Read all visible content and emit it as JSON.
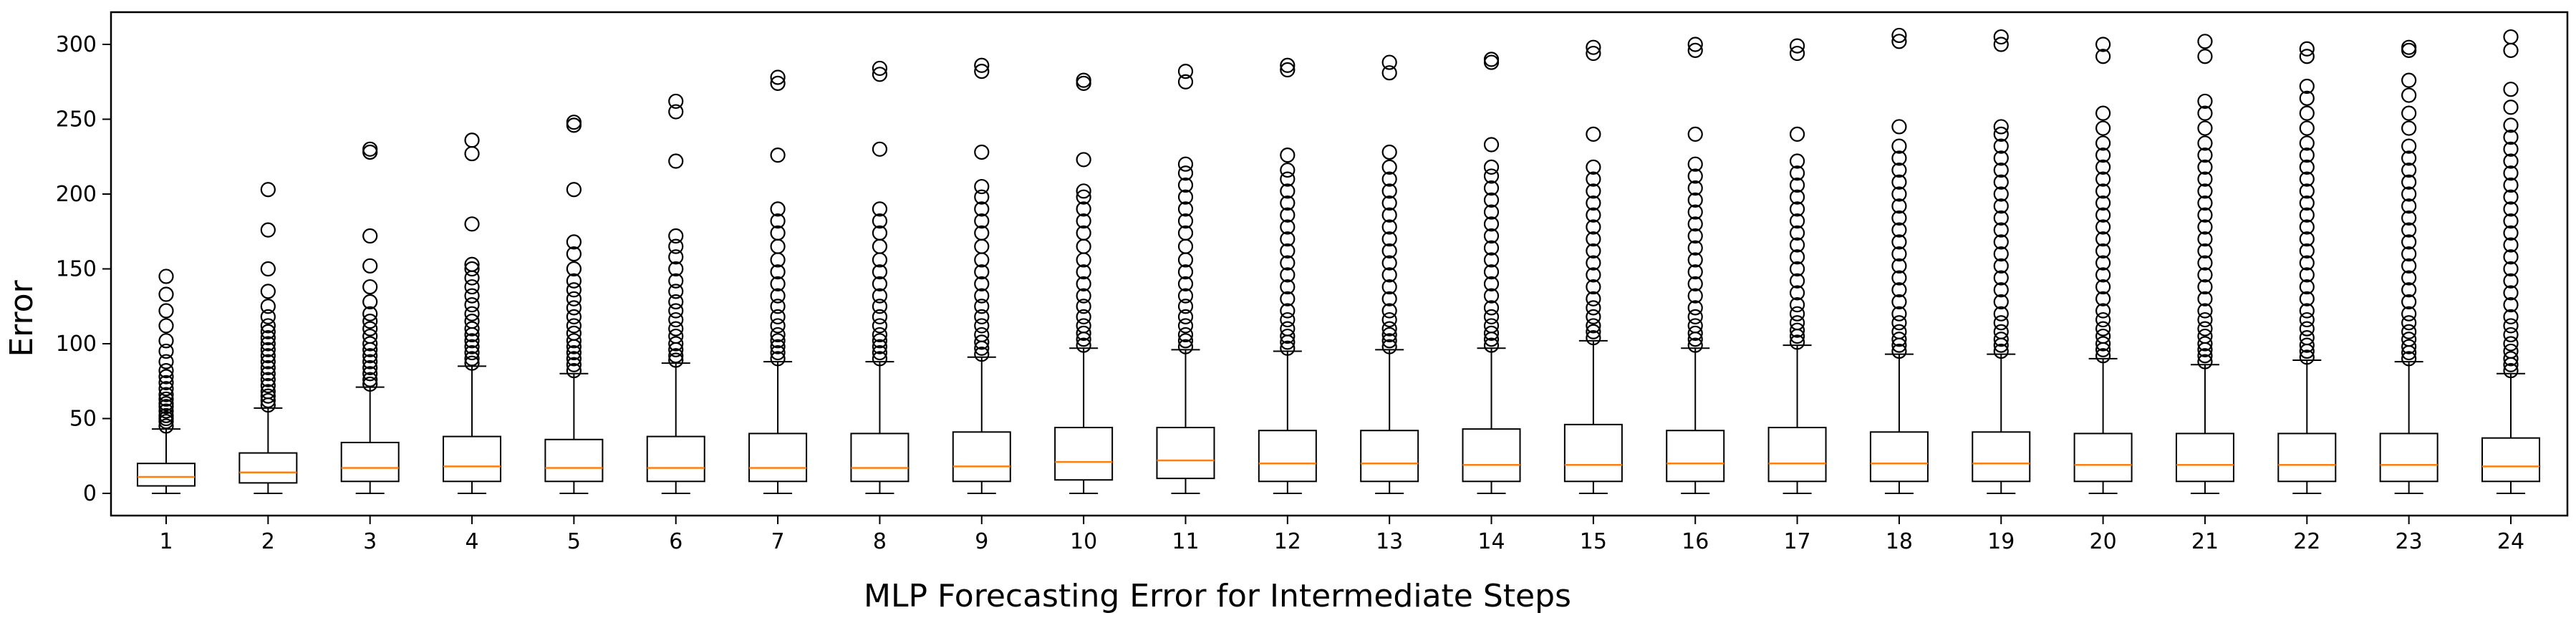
{
  "chart_data": {
    "type": "box",
    "title": "",
    "xlabel": "MLP Forecasting Error for Intermediate Steps",
    "ylabel": "Error",
    "ylim": [
      -15,
      320
    ],
    "yticks": [
      0,
      50,
      100,
      150,
      200,
      250,
      300
    ],
    "grid": false,
    "colors": {
      "box": "#000000",
      "median": "#ff7f0e",
      "flier": "#000000"
    },
    "categories": [
      "1",
      "2",
      "3",
      "4",
      "5",
      "6",
      "7",
      "8",
      "9",
      "10",
      "11",
      "12",
      "13",
      "14",
      "15",
      "16",
      "17",
      "18",
      "19",
      "20",
      "21",
      "22",
      "23",
      "24"
    ],
    "boxes": [
      {
        "whislo": 0,
        "q1": 5,
        "med": 11,
        "q3": 20,
        "whishi": 43,
        "fliers": [
          45,
          48,
          50,
          52,
          55,
          58,
          60,
          63,
          66,
          70,
          74,
          78,
          82,
          88,
          95,
          102,
          112,
          122,
          133,
          145
        ]
      },
      {
        "whislo": 0,
        "q1": 7,
        "med": 14,
        "q3": 27,
        "whishi": 57,
        "fliers": [
          59,
          62,
          65,
          68,
          72,
          76,
          80,
          84,
          88,
          92,
          96,
          100,
          104,
          108,
          112,
          118,
          125,
          135,
          150,
          176,
          203
        ]
      },
      {
        "whislo": 0,
        "q1": 8,
        "med": 17,
        "q3": 34,
        "whishi": 71,
        "fliers": [
          73,
          76,
          80,
          84,
          88,
          92,
          96,
          100,
          105,
          110,
          115,
          120,
          128,
          138,
          152,
          172,
          228,
          230
        ]
      },
      {
        "whislo": 0,
        "q1": 8,
        "med": 18,
        "q3": 38,
        "whishi": 85,
        "fliers": [
          87,
          90,
          94,
          98,
          102,
          106,
          110,
          115,
          120,
          126,
          132,
          138,
          144,
          150,
          153,
          180,
          227,
          236
        ]
      },
      {
        "whislo": 0,
        "q1": 8,
        "med": 17,
        "q3": 36,
        "whishi": 80,
        "fliers": [
          82,
          86,
          90,
          94,
          98,
          102,
          107,
          112,
          118,
          124,
          130,
          136,
          142,
          150,
          160,
          168,
          203,
          246,
          248
        ]
      },
      {
        "whislo": 0,
        "q1": 8,
        "med": 17,
        "q3": 38,
        "whishi": 87,
        "fliers": [
          89,
          92,
          96,
          100,
          105,
          110,
          116,
          122,
          128,
          135,
          142,
          150,
          158,
          165,
          172,
          222,
          255,
          262
        ]
      },
      {
        "whislo": 0,
        "q1": 8,
        "med": 17,
        "q3": 40,
        "whishi": 88,
        "fliers": [
          90,
          94,
          98,
          102,
          106,
          112,
          118,
          125,
          132,
          140,
          148,
          156,
          165,
          174,
          182,
          190,
          226,
          274,
          278
        ]
      },
      {
        "whislo": 0,
        "q1": 8,
        "med": 17,
        "q3": 40,
        "whishi": 88,
        "fliers": [
          90,
          94,
          98,
          102,
          106,
          112,
          118,
          125,
          132,
          140,
          148,
          156,
          165,
          174,
          182,
          190,
          230,
          280,
          284
        ]
      },
      {
        "whislo": 0,
        "q1": 8,
        "med": 18,
        "q3": 41,
        "whishi": 91,
        "fliers": [
          93,
          97,
          101,
          106,
          112,
          118,
          125,
          132,
          140,
          148,
          156,
          165,
          174,
          182,
          190,
          198,
          205,
          228,
          282,
          286
        ]
      },
      {
        "whislo": 0,
        "q1": 9,
        "med": 21,
        "q3": 44,
        "whishi": 97,
        "fliers": [
          99,
          103,
          107,
          112,
          118,
          125,
          132,
          140,
          148,
          156,
          165,
          174,
          182,
          190,
          198,
          202,
          223,
          274,
          276
        ]
      },
      {
        "whislo": 0,
        "q1": 10,
        "med": 22,
        "q3": 44,
        "whishi": 96,
        "fliers": [
          98,
          102,
          106,
          112,
          118,
          125,
          132,
          140,
          148,
          156,
          165,
          174,
          182,
          190,
          198,
          206,
          214,
          220,
          275,
          282
        ]
      },
      {
        "whislo": 0,
        "q1": 8,
        "med": 20,
        "q3": 42,
        "whishi": 95,
        "fliers": [
          97,
          101,
          105,
          110,
          116,
          122,
          130,
          138,
          146,
          154,
          162,
          170,
          178,
          186,
          194,
          202,
          210,
          216,
          226,
          283,
          286
        ]
      },
      {
        "whislo": 0,
        "q1": 8,
        "med": 20,
        "q3": 42,
        "whishi": 96,
        "fliers": [
          98,
          102,
          106,
          110,
          116,
          122,
          130,
          138,
          146,
          154,
          162,
          170,
          178,
          186,
          194,
          202,
          210,
          218,
          228,
          281,
          288
        ]
      },
      {
        "whislo": 0,
        "q1": 8,
        "med": 19,
        "q3": 43,
        "whishi": 97,
        "fliers": [
          99,
          103,
          107,
          112,
          118,
          124,
          132,
          140,
          148,
          156,
          164,
          172,
          180,
          188,
          196,
          204,
          212,
          218,
          233,
          288,
          290
        ]
      },
      {
        "whislo": 0,
        "q1": 8,
        "med": 19,
        "q3": 46,
        "whishi": 102,
        "fliers": [
          104,
          108,
          112,
          118,
          124,
          130,
          138,
          146,
          154,
          162,
          170,
          178,
          186,
          194,
          202,
          210,
          218,
          240,
          294,
          298
        ]
      },
      {
        "whislo": 0,
        "q1": 8,
        "med": 20,
        "q3": 42,
        "whishi": 97,
        "fliers": [
          99,
          103,
          107,
          112,
          118,
          124,
          132,
          140,
          148,
          156,
          164,
          172,
          180,
          188,
          196,
          204,
          212,
          220,
          240,
          296,
          300
        ]
      },
      {
        "whislo": 0,
        "q1": 8,
        "med": 20,
        "q3": 44,
        "whishi": 99,
        "fliers": [
          101,
          105,
          109,
          114,
          120,
          126,
          134,
          142,
          150,
          158,
          166,
          174,
          182,
          190,
          198,
          206,
          214,
          222,
          240,
          294,
          299
        ]
      },
      {
        "whislo": 0,
        "q1": 8,
        "med": 20,
        "q3": 41,
        "whishi": 93,
        "fliers": [
          95,
          99,
          103,
          108,
          114,
          120,
          128,
          136,
          144,
          152,
          160,
          168,
          176,
          184,
          192,
          200,
          208,
          216,
          224,
          232,
          245,
          302,
          306
        ]
      },
      {
        "whislo": 0,
        "q1": 8,
        "med": 20,
        "q3": 41,
        "whishi": 93,
        "fliers": [
          95,
          99,
          103,
          108,
          114,
          120,
          128,
          136,
          144,
          152,
          160,
          168,
          176,
          184,
          192,
          200,
          208,
          216,
          224,
          232,
          240,
          245,
          300,
          305
        ]
      },
      {
        "whislo": 0,
        "q1": 8,
        "med": 19,
        "q3": 40,
        "whishi": 90,
        "fliers": [
          92,
          96,
          100,
          105,
          110,
          116,
          122,
          130,
          138,
          146,
          154,
          162,
          170,
          178,
          186,
          194,
          202,
          210,
          218,
          226,
          234,
          244,
          254,
          292,
          300
        ]
      },
      {
        "whislo": 0,
        "q1": 8,
        "med": 19,
        "q3": 40,
        "whishi": 86,
        "fliers": [
          88,
          92,
          96,
          100,
          105,
          110,
          116,
          122,
          130,
          138,
          146,
          154,
          162,
          170,
          178,
          186,
          194,
          202,
          210,
          218,
          226,
          234,
          244,
          254,
          262,
          292,
          302
        ]
      },
      {
        "whislo": 0,
        "q1": 8,
        "med": 19,
        "q3": 40,
        "whishi": 89,
        "fliers": [
          91,
          95,
          99,
          104,
          110,
          116,
          122,
          130,
          138,
          146,
          154,
          162,
          170,
          178,
          186,
          194,
          202,
          210,
          218,
          226,
          234,
          244,
          254,
          264,
          272,
          292,
          297
        ]
      },
      {
        "whislo": 0,
        "q1": 8,
        "med": 19,
        "q3": 40,
        "whishi": 88,
        "fliers": [
          90,
          94,
          98,
          103,
          108,
          114,
          120,
          128,
          136,
          144,
          152,
          160,
          168,
          176,
          184,
          192,
          200,
          208,
          216,
          224,
          232,
          244,
          254,
          266,
          276,
          296,
          298
        ]
      },
      {
        "whislo": 0,
        "q1": 8,
        "med": 18,
        "q3": 37,
        "whishi": 80,
        "fliers": [
          82,
          86,
          90,
          95,
          100,
          106,
          112,
          118,
          126,
          134,
          142,
          150,
          158,
          166,
          174,
          182,
          190,
          198,
          206,
          214,
          222,
          230,
          238,
          246,
          258,
          270,
          296,
          305
        ]
      }
    ]
  }
}
